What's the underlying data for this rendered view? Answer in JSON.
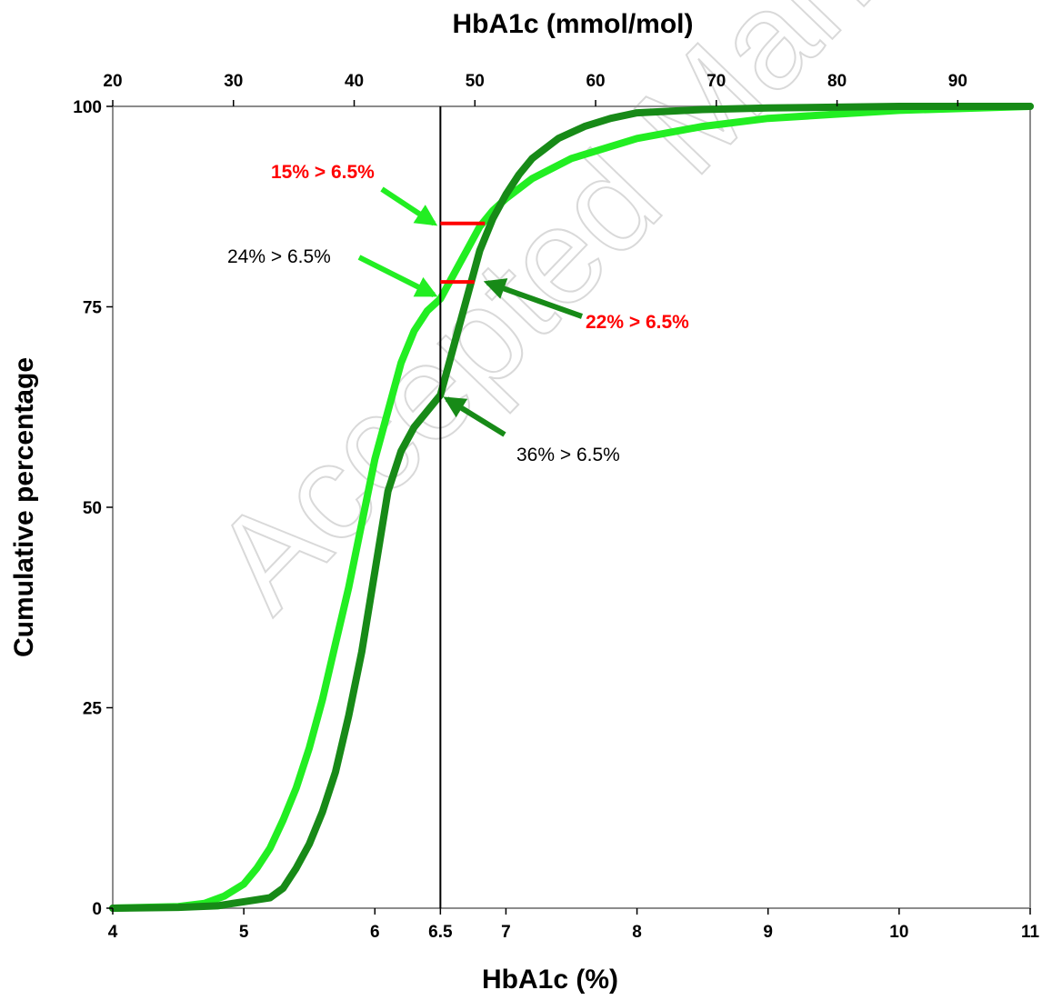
{
  "watermark": "Accepted Manuscript",
  "chart_data": {
    "type": "line",
    "xlabel": "HbA1c (%)",
    "x2label": "HbA1c (mmol/mol)",
    "ylabel": "Cumulative percentage",
    "xlim": [
      4,
      11
    ],
    "x2lim": [
      20,
      96
    ],
    "ylim": [
      0,
      100
    ],
    "x_ticks": [
      "4",
      "5",
      "6",
      "6.5",
      "7",
      "8",
      "9",
      "10",
      "11"
    ],
    "x2_ticks": [
      "20",
      "30",
      "40",
      "50",
      "60",
      "70",
      "80",
      "90"
    ],
    "y_ticks": [
      "0",
      "25",
      "50",
      "75",
      "100"
    ],
    "grid": false,
    "colors": {
      "light": "#22ee22",
      "dark": "#178a17",
      "red": "#ff0000",
      "vline": "#000000"
    },
    "reference_line_x": 6.5,
    "series": [
      {
        "color": "#22ee22",
        "x": [
          4.0,
          4.5,
          4.7,
          4.85,
          5.0,
          5.1,
          5.2,
          5.3,
          5.4,
          5.5,
          5.6,
          5.7,
          5.8,
          5.9,
          6.0,
          6.1,
          6.2,
          6.3,
          6.4,
          6.5,
          6.6,
          6.7,
          6.8,
          6.9,
          7.0,
          7.2,
          7.5,
          8.0,
          8.5,
          9.0,
          9.5,
          10.0,
          11.0
        ],
        "y": [
          0,
          0.2,
          0.6,
          1.5,
          3,
          5,
          7.5,
          11,
          15,
          20,
          26,
          33,
          40,
          48,
          56,
          62,
          68,
          72,
          74.5,
          76,
          79,
          82,
          85,
          87,
          88.5,
          91,
          93.5,
          96,
          97.5,
          98.5,
          99,
          99.5,
          100
        ]
      },
      {
        "color": "#178a17",
        "x": [
          4.0,
          4.5,
          4.8,
          5.0,
          5.2,
          5.3,
          5.4,
          5.5,
          5.6,
          5.7,
          5.8,
          5.9,
          6.0,
          6.1,
          6.2,
          6.3,
          6.4,
          6.5,
          6.6,
          6.7,
          6.8,
          6.9,
          7.0,
          7.1,
          7.2,
          7.4,
          7.6,
          7.8,
          8.0,
          8.5,
          9.0,
          10.0,
          11.0
        ],
        "y": [
          0,
          0.1,
          0.3,
          0.8,
          1.3,
          2.5,
          5,
          8,
          12,
          17,
          24,
          32,
          42,
          52,
          57,
          60,
          62,
          64,
          70,
          76,
          82,
          86,
          89,
          91.5,
          93.5,
          96,
          97.5,
          98.5,
          99.2,
          99.6,
          99.8,
          100,
          100
        ]
      }
    ],
    "red_segments": [
      {
        "x": [
          6.5,
          6.84
        ],
        "y": 85.4
      },
      {
        "x": [
          6.5,
          6.76
        ],
        "y": 78.1
      }
    ],
    "annotations": [
      {
        "text": "15% > 6.5%",
        "color": "#ff0000"
      },
      {
        "text": "24% > 6.5%",
        "color": "#000000"
      },
      {
        "text": "22% > 6.5%",
        "color": "#ff0000"
      },
      {
        "text": "36% > 6.5%",
        "color": "#000000"
      }
    ],
    "arrows": [
      {
        "color": "#22ee22",
        "target": [
          6.45,
          85.4
        ]
      },
      {
        "color": "#22ee22",
        "target": [
          6.45,
          76.5
        ]
      },
      {
        "color": "#178a17",
        "target": [
          6.86,
          78.0
        ]
      },
      {
        "color": "#178a17",
        "target": [
          6.55,
          63.5
        ]
      }
    ]
  }
}
